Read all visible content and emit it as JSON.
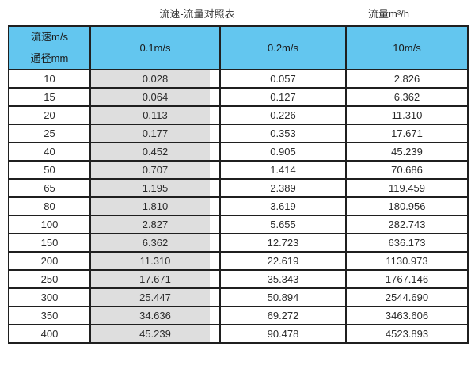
{
  "header": {
    "title": "流速-流量对照表",
    "unit_label": "流量m³/h"
  },
  "table": {
    "corner_top": "流速m/s",
    "corner_bottom": "通径mm",
    "columns": [
      "0.1m/s",
      "0.2m/s",
      "10m/s"
    ],
    "rows": [
      [
        "10",
        "0.028",
        "0.057",
        "2.826"
      ],
      [
        "15",
        "0.064",
        "0.127",
        "6.362"
      ],
      [
        "20",
        "0.113",
        "0.226",
        "11.310"
      ],
      [
        "25",
        "0.177",
        "0.353",
        "17.671"
      ],
      [
        "40",
        "0.452",
        "0.905",
        "45.239"
      ],
      [
        "50",
        "0.707",
        "1.414",
        "70.686"
      ],
      [
        "65",
        "1.195",
        "2.389",
        "119.459"
      ],
      [
        "80",
        "1.810",
        "3.619",
        "180.956"
      ],
      [
        "100",
        "2.827",
        "5.655",
        "282.743"
      ],
      [
        "150",
        "6.362",
        "12.723",
        "636.173"
      ],
      [
        "200",
        "11.310",
        "22.619",
        "1130.973"
      ],
      [
        "250",
        "17.671",
        "35.343",
        "1767.146"
      ],
      [
        "300",
        "25.447",
        "50.894",
        "2544.690"
      ],
      [
        "350",
        "34.636",
        "69.272",
        "3463.606"
      ],
      [
        "400",
        "45.239",
        "90.478",
        "4523.893"
      ]
    ]
  },
  "colors": {
    "header_light_blue": "#63C6EF",
    "header_dark_blue": "#6EB2D3",
    "highlight_gray": "#DEDEDE",
    "border_black": "#1F1F1F"
  },
  "chart_data": {
    "type": "table",
    "title": "流速-流量对照表",
    "unit_label": "流量m³/h",
    "row_header_label": "通径mm",
    "col_header_label": "流速m/s",
    "columns": [
      "0.1m/s",
      "0.2m/s",
      "10m/s"
    ],
    "diameters_mm": [
      10,
      15,
      20,
      25,
      40,
      50,
      65,
      80,
      100,
      150,
      200,
      250,
      300,
      350,
      400
    ],
    "series": [
      {
        "name": "0.1m/s",
        "values": [
          0.028,
          0.064,
          0.113,
          0.177,
          0.452,
          0.707,
          1.195,
          1.81,
          2.827,
          6.362,
          11.31,
          17.671,
          25.447,
          34.636,
          45.239
        ]
      },
      {
        "name": "0.2m/s",
        "values": [
          0.057,
          0.127,
          0.226,
          0.353,
          0.905,
          1.414,
          2.389,
          3.619,
          5.655,
          12.723,
          22.619,
          35.343,
          50.894,
          69.272,
          90.478
        ]
      },
      {
        "name": "10m/s",
        "values": [
          2.826,
          6.362,
          11.31,
          17.671,
          45.239,
          70.686,
          119.459,
          180.956,
          282.743,
          636.173,
          1130.973,
          1767.146,
          2544.69,
          3463.606,
          4523.893
        ]
      }
    ]
  }
}
